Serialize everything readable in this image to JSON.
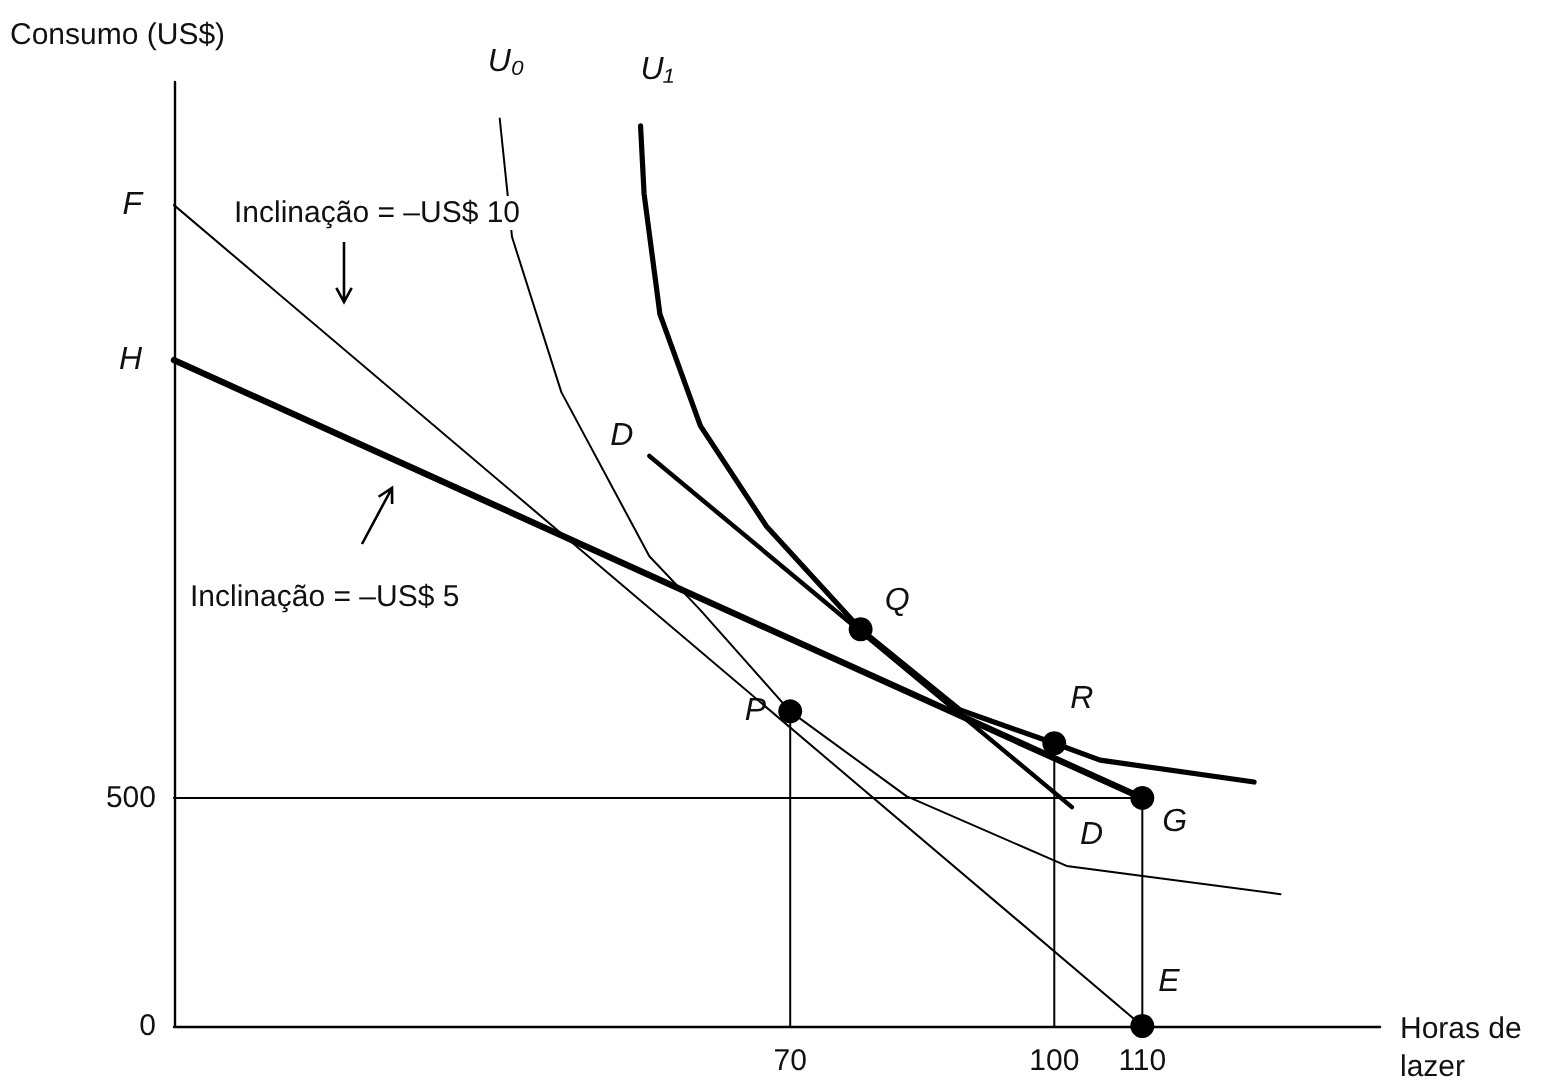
{
  "chart_data": {
    "type": "line",
    "xlabel": "Horas de lazer",
    "ylabel": "Consumo (US$)",
    "xlim": [
      0,
      137
    ],
    "ylim": [
      0,
      2070
    ],
    "xticks": [
      70,
      100,
      110
    ],
    "yticks": [
      0,
      500
    ],
    "grid": false,
    "marker": "none",
    "line_style": "solid",
    "series": [
      {
        "color": "#000000",
        "x": [
          0,
          110
        ],
        "values": [
          1800,
          0
        ]
      },
      {
        "color": "#000000",
        "x": [
          0,
          110
        ],
        "values": [
          1460,
          500
        ]
      },
      {
        "color": "#000000",
        "x": [
          54,
          102
        ],
        "values": [
          1250,
          480
        ]
      },
      {
        "color": "#000000",
        "x": [
          37,
          38.4,
          44,
          54,
          59.8,
          70,
          83.2,
          101.4,
          125.7
        ],
        "values": [
          1990,
          1730,
          1390,
          1030,
          912,
          690,
          504,
          351,
          289
        ]
      },
      {
        "color": "#000000",
        "x": [
          53,
          53.4,
          55.2,
          59.8,
          67.3,
          78,
          89.3,
          100,
          105.2,
          122.7
        ],
        "values": [
          1974,
          1825,
          1561,
          1316,
          1096,
          870,
          693,
          620,
          583,
          535
        ]
      },
      {
        "color": "#000000",
        "x": [
          0,
          110
        ],
        "values": [
          500,
          500
        ]
      },
      {
        "color": "#000000",
        "x": [
          70,
          70
        ],
        "values": [
          0,
          690
        ]
      },
      {
        "color": "#000000",
        "x": [
          100,
          100
        ],
        "values": [
          0,
          620
        ]
      },
      {
        "color": "#000000",
        "x": [
          110,
          110
        ],
        "values": [
          0,
          500
        ]
      },
      {
        "type": "scatter",
        "marker": "circle",
        "color": "#000000",
        "x": [
          70,
          78,
          100,
          110,
          110
        ],
        "values": [
          690,
          870,
          620,
          500,
          0
        ]
      }
    ],
    "annotations": [
      {
        "text": "F",
        "x": 0,
        "y": 1800
      },
      {
        "text": "H",
        "x": 0,
        "y": 1460
      },
      {
        "text": "P",
        "x": 70,
        "y": 690
      },
      {
        "text": "Q",
        "x": 78,
        "y": 870
      },
      {
        "text": "R",
        "x": 100,
        "y": 620
      },
      {
        "text": "G",
        "x": 110,
        "y": 500
      },
      {
        "text": "E",
        "x": 110,
        "y": 0
      },
      {
        "text": "D",
        "x": 54,
        "y": 1250
      },
      {
        "text": "D",
        "x": 102,
        "y": 480
      },
      {
        "text": "U₀",
        "x": 37,
        "y": 1990
      },
      {
        "text": "U₁",
        "x": 53,
        "y": 1974
      },
      "Inclinação = –US$ 10",
      "Inclinação = –US$ 5"
    ]
  }
}
